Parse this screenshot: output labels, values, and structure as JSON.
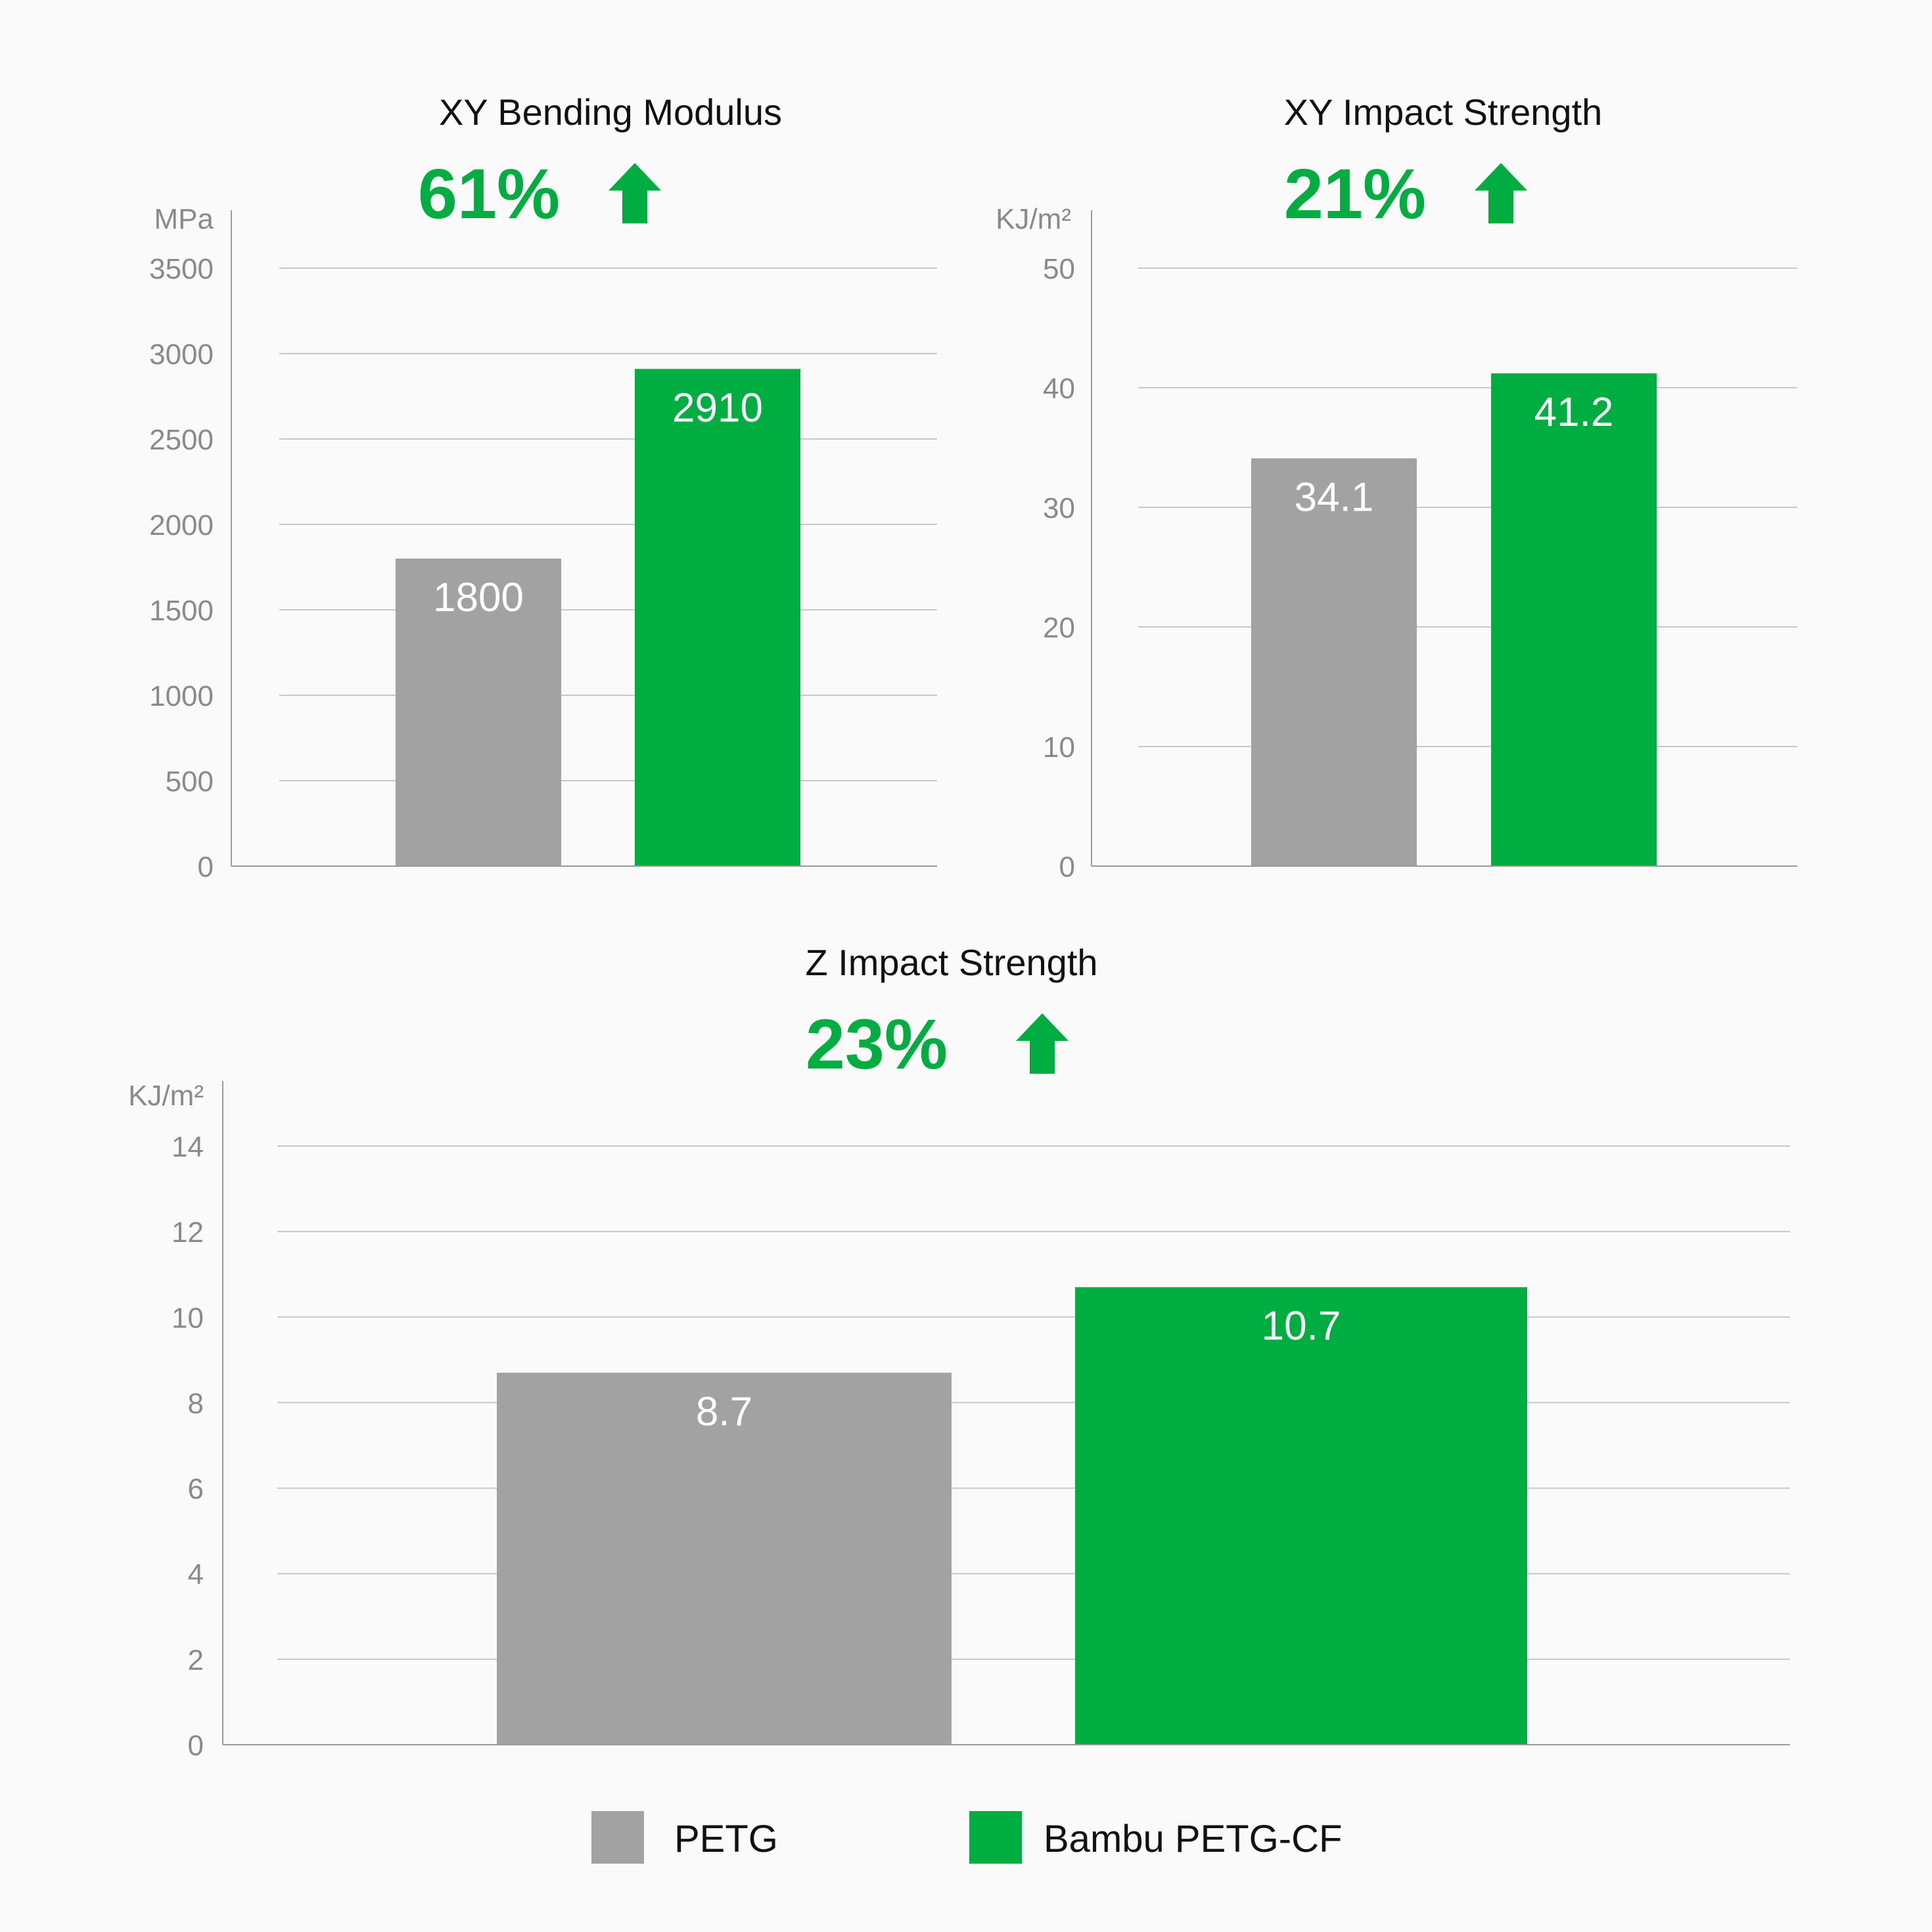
{
  "colors": {
    "petg": "#a2a2a2",
    "petg_cf": "#00ad40",
    "accent": "#00ad40",
    "gridline": "#c8c8c8",
    "axis": "#9a9a9a"
  },
  "legend": {
    "items": [
      {
        "label": "PETG",
        "color": "#a2a2a2"
      },
      {
        "label": "Bambu PETG-CF",
        "color": "#00ad40"
      }
    ]
  },
  "chart_data": [
    {
      "type": "bar",
      "title": "XY Bending Modulus",
      "improvement": "61%",
      "improvement_icon": "up-arrow-icon",
      "unit": "MPa",
      "categories": [
        "PETG",
        "Bambu PETG-CF"
      ],
      "values": [
        1800,
        2910
      ],
      "value_labels": [
        "1800",
        "2910"
      ],
      "yticks": [
        0,
        500,
        1000,
        1500,
        2000,
        2500,
        3000,
        3500
      ],
      "ylim": [
        0,
        3500
      ],
      "grid": true
    },
    {
      "type": "bar",
      "title": "XY Impact Strength",
      "improvement": "21%",
      "improvement_icon": "up-arrow-icon",
      "unit": "KJ/m²",
      "categories": [
        "PETG",
        "Bambu PETG-CF"
      ],
      "values": [
        34.1,
        41.2
      ],
      "value_labels": [
        "34.1",
        "41.2"
      ],
      "yticks": [
        0,
        10,
        20,
        30,
        40,
        50
      ],
      "ylim": [
        0,
        50
      ],
      "grid": true
    },
    {
      "type": "bar",
      "title": "Z Impact Strength",
      "improvement": "23%",
      "improvement_icon": "up-arrow-icon",
      "unit": "KJ/m²",
      "categories": [
        "PETG",
        "Bambu PETG-CF"
      ],
      "values": [
        8.7,
        10.7
      ],
      "value_labels": [
        "8.7",
        "10.7"
      ],
      "yticks": [
        0,
        2,
        4,
        6,
        8,
        10,
        12,
        14
      ],
      "ylim": [
        0,
        14
      ],
      "grid": true
    }
  ]
}
